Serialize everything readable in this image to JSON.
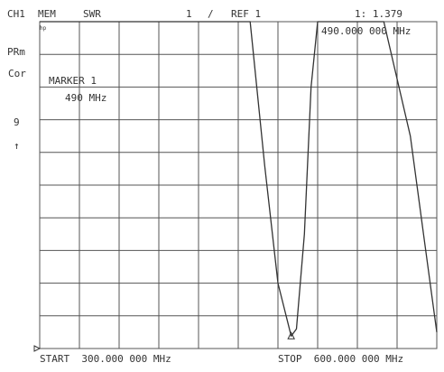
{
  "header": {
    "channel": "CH1",
    "memory": "MEM",
    "format": "SWR",
    "scale": "1",
    "scale_unit": "/",
    "reference": "REF 1",
    "marker_readout": "1: 1.379",
    "marker_frequency": "490.000 000 MHz"
  },
  "side_labels": {
    "prm": "PRm",
    "cor": "Cor",
    "ref_position": "9",
    "ref_arrow": "↑",
    "hp_logo": "hp"
  },
  "marker": {
    "title": "MARKER 1",
    "frequency": "490 MHz"
  },
  "footer": {
    "start": "START  300.000 000 MHz",
    "stop": "STOP  600.000 000 MHz"
  },
  "colors": {
    "trace": "#333333",
    "grid": "#555555",
    "text": "#333333"
  },
  "chart_data": {
    "type": "line",
    "title": "",
    "xlabel": "",
    "ylabel": "",
    "x_unit": "MHz",
    "xlim": [
      300,
      600
    ],
    "ylim": [
      1,
      11
    ],
    "grid": true,
    "divisions": {
      "x": 10,
      "y": 10
    },
    "series": [
      {
        "x": [
          300,
          459,
          470,
          480,
          490,
          494,
          500,
          505,
          510,
          518,
          560,
          580,
          590,
          600
        ],
        "y": [
          11,
          11,
          6.6,
          3.0,
          1.379,
          1.6,
          4.5,
          9.0,
          11,
          11,
          11,
          7.5,
          4.5,
          1.5
        ]
      }
    ],
    "marker_points": [
      {
        "label": "1",
        "x": 490,
        "y": 1.379
      }
    ]
  }
}
